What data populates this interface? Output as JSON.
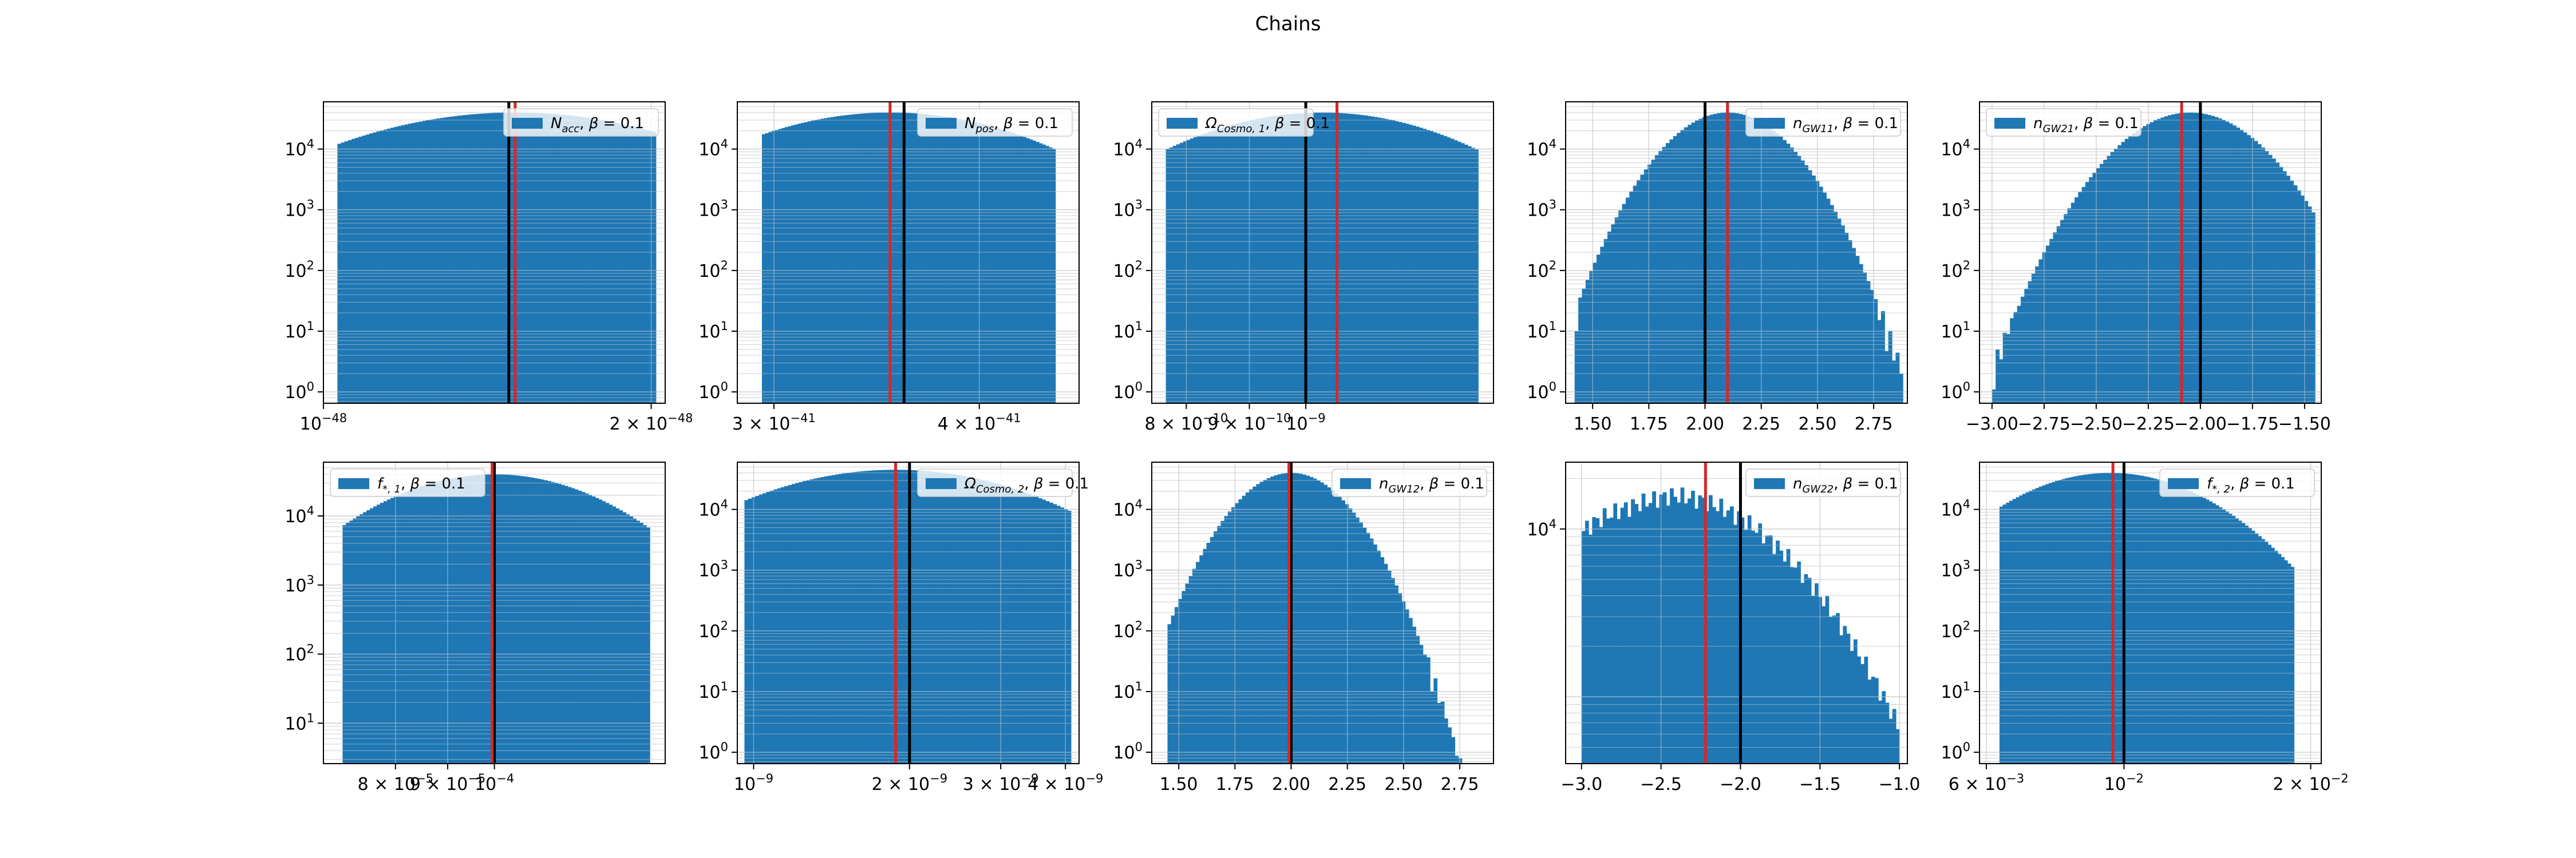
{
  "figure": {
    "title": "Chains"
  },
  "colors": {
    "bar": "#1f77b4",
    "true_line": "#000000",
    "est_line": "#d62728",
    "grid": "#d3d3d3",
    "axis": "#000000"
  },
  "chart_data": [
    {
      "type": "bar",
      "title": "",
      "xlabel": "",
      "ylabel": "",
      "legend": {
        "label": "N_acc, β = 0.1",
        "sym": "N",
        "sub": "acc",
        "beta": "0.1",
        "placement": "top-right"
      },
      "x_axis": {
        "scale": "log",
        "range": [
          1e-48,
          2.06e-48
        ],
        "ticks": [
          {
            "value": 1e-48,
            "label": "10⁻⁴⁸"
          },
          {
            "value": 2e-48,
            "label": "2 × 10⁻⁴⁸"
          }
        ]
      },
      "y_axis": {
        "scale": "log",
        "range": [
          0.65,
          60000
        ],
        "grid": true,
        "ticks": [
          {
            "value": 1,
            "label": "10⁰"
          },
          {
            "value": 10,
            "label": "10¹"
          },
          {
            "value": 100,
            "label": "10²"
          },
          {
            "value": 1000,
            "label": "10³"
          },
          {
            "value": 10000,
            "label": "10⁴"
          }
        ]
      },
      "histogram": {
        "min": 1.03e-48,
        "max": 2.02e-48,
        "peak_center": 1.5e-48,
        "peak": 40000,
        "log_std": 0.105,
        "bins": 90
      },
      "lines": [
        {
          "label": "true",
          "value": 1.48e-48,
          "color": "#000000"
        },
        {
          "label": "estimate",
          "value": 1.5e-48,
          "color": "#d62728"
        }
      ],
      "grid": true
    },
    {
      "type": "bar",
      "title": "",
      "xlabel": "",
      "ylabel": "",
      "legend": {
        "label": "N_pos, β = 0.1",
        "sym": "N",
        "sub": "pos",
        "beta": "0.1",
        "placement": "top-right"
      },
      "x_axis": {
        "scale": "log",
        "range": [
          2.85e-41,
          4.6e-41
        ],
        "ticks": [
          {
            "value": 3e-41,
            "label": "3 × 10⁻⁴¹"
          },
          {
            "value": 4e-41,
            "label": "4 × 10⁻⁴¹"
          }
        ]
      },
      "y_axis": {
        "scale": "log",
        "range": [
          0.65,
          60000
        ],
        "grid": true,
        "ticks": [
          {
            "value": 1,
            "label": "10⁰"
          },
          {
            "value": 10,
            "label": "10¹"
          },
          {
            "value": 100,
            "label": "10²"
          },
          {
            "value": 1000,
            "label": "10³"
          },
          {
            "value": 10000,
            "label": "10⁴"
          }
        ]
      },
      "histogram": {
        "min": 2.95e-41,
        "max": 4.45e-41,
        "peak_center": 3.53e-41,
        "peak": 40000,
        "log_std": 0.06,
        "bins": 90
      },
      "lines": [
        {
          "label": "true",
          "value": 3.6e-41,
          "color": "#000000"
        },
        {
          "label": "estimate",
          "value": 3.53e-41,
          "color": "#d62728"
        }
      ],
      "grid": true
    },
    {
      "type": "bar",
      "title": "",
      "xlabel": "",
      "ylabel": "",
      "legend": {
        "label": "Ω_Cosmo,1, β = 0.1",
        "sym": "Ω",
        "sub": "Cosmo, 1",
        "beta": "0.1",
        "placement": "top-left"
      },
      "x_axis": {
        "scale": "log",
        "range": [
          7.5e-10,
          1.42e-09
        ],
        "ticks": [
          {
            "value": 8e-10,
            "label": "8 × 10⁻¹⁰"
          },
          {
            "value": 9e-10,
            "label": "9 × 10⁻¹⁰"
          },
          {
            "value": 1e-09,
            "label": "10⁻⁹"
          }
        ]
      },
      "y_axis": {
        "scale": "log",
        "range": [
          0.65,
          60000
        ],
        "grid": true,
        "ticks": [
          {
            "value": 1,
            "label": "10⁰"
          },
          {
            "value": 10,
            "label": "10¹"
          },
          {
            "value": 100,
            "label": "10²"
          },
          {
            "value": 1000,
            "label": "10³"
          },
          {
            "value": 10000,
            "label": "10⁴"
          }
        ]
      },
      "histogram": {
        "min": 7.7e-10,
        "max": 1.38e-09,
        "peak_center": 1.03e-09,
        "peak": 40000,
        "log_std": 0.075,
        "bins": 90
      },
      "lines": [
        {
          "label": "true",
          "value": 1e-09,
          "color": "#000000"
        },
        {
          "label": "estimate",
          "value": 1.06e-09,
          "color": "#d62728"
        }
      ],
      "grid": true
    },
    {
      "type": "bar",
      "title": "",
      "xlabel": "",
      "ylabel": "",
      "legend": {
        "label": "n_GW11, β = 0.1",
        "sym": "n",
        "sub": "GW11",
        "beta": "0.1",
        "placement": "top-right"
      },
      "x_axis": {
        "scale": "linear",
        "range": [
          1.38,
          2.9
        ],
        "ticks": [
          {
            "value": 1.5,
            "label": "1.50"
          },
          {
            "value": 1.75,
            "label": "1.75"
          },
          {
            "value": 2.0,
            "label": "2.00"
          },
          {
            "value": 2.25,
            "label": "2.25"
          },
          {
            "value": 2.5,
            "label": "2.50"
          },
          {
            "value": 2.75,
            "label": "2.75"
          }
        ]
      },
      "y_axis": {
        "scale": "log",
        "range": [
          0.65,
          60000
        ],
        "grid": true,
        "ticks": [
          {
            "value": 1,
            "label": "10⁰"
          },
          {
            "value": 10,
            "label": "10¹"
          },
          {
            "value": 100,
            "label": "10²"
          },
          {
            "value": 1000,
            "label": "10³"
          },
          {
            "value": 10000,
            "label": "10⁴"
          }
        ]
      },
      "histogram": {
        "min": 1.42,
        "max": 2.88,
        "peak_center": 2.1,
        "peak": 40000,
        "log_std": 0.175,
        "bins": 90
      },
      "lines": [
        {
          "label": "true",
          "value": 2.0,
          "color": "#000000"
        },
        {
          "label": "estimate",
          "value": 2.1,
          "color": "#d62728"
        }
      ],
      "grid": true
    },
    {
      "type": "bar",
      "title": "",
      "xlabel": "",
      "ylabel": "",
      "legend": {
        "label": "n_GW21, β = 0.1",
        "sym": "n",
        "sub": "GW21",
        "beta": "0.1",
        "placement": "top-left"
      },
      "x_axis": {
        "scale": "linear",
        "range": [
          -3.06,
          -1.42
        ],
        "ticks": [
          {
            "value": -3.0,
            "label": "−3.00"
          },
          {
            "value": -2.75,
            "label": "−2.75"
          },
          {
            "value": -2.5,
            "label": "−2.50"
          },
          {
            "value": -2.25,
            "label": "−2.25"
          },
          {
            "value": -2.0,
            "label": "−2.00"
          },
          {
            "value": -1.75,
            "label": "−1.75"
          },
          {
            "value": -1.5,
            "label": "−1.50"
          }
        ]
      },
      "y_axis": {
        "scale": "log",
        "range": [
          0.65,
          60000
        ],
        "grid": true,
        "ticks": [
          {
            "value": 1,
            "label": "10⁰"
          },
          {
            "value": 10,
            "label": "10¹"
          },
          {
            "value": 100,
            "label": "10²"
          },
          {
            "value": 1000,
            "label": "10³"
          },
          {
            "value": 10000,
            "label": "10⁴"
          }
        ]
      },
      "histogram": {
        "min": -3.0,
        "max": -1.45,
        "peak_center": -2.05,
        "peak": 40000,
        "log_std": 0.215,
        "bins": 90
      },
      "lines": [
        {
          "label": "true",
          "value": -2.0,
          "color": "#000000"
        },
        {
          "label": "estimate",
          "value": -2.09,
          "color": "#d62728"
        }
      ],
      "grid": true
    },
    {
      "type": "bar",
      "title": "",
      "xlabel": "",
      "ylabel": "",
      "legend": {
        "label": "f*,1, β = 0.1",
        "sym": "f",
        "sub": "*, 1",
        "beta": "0.1",
        "placement": "top-left"
      },
      "x_axis": {
        "scale": "log",
        "range": [
          6.8e-05,
          0.000147
        ],
        "ticks": [
          {
            "value": 8e-05,
            "label": "8 × 10⁻⁵"
          },
          {
            "value": 9e-05,
            "label": "9 × 10⁻⁵"
          },
          {
            "value": 0.0001,
            "label": "10⁻⁴"
          }
        ]
      },
      "y_axis": {
        "scale": "log",
        "range": [
          2.6,
          60000
        ],
        "grid": true,
        "ticks": [
          {
            "value": 10,
            "label": "10¹"
          },
          {
            "value": 100,
            "label": "10²"
          },
          {
            "value": 1000,
            "label": "10³"
          },
          {
            "value": 10000,
            "label": "10⁴"
          }
        ]
      },
      "histogram": {
        "min": 7.1e-05,
        "max": 0.000142,
        "peak_center": 0.0001,
        "peak": 40000,
        "log_std": 0.08,
        "bins": 90
      },
      "lines": [
        {
          "label": "true",
          "value": 0.0001,
          "color": "#000000"
        },
        {
          "label": "estimate",
          "value": 9.95e-05,
          "color": "#d62728"
        }
      ],
      "grid": true
    },
    {
      "type": "bar",
      "title": "",
      "xlabel": "",
      "ylabel": "",
      "legend": {
        "label": "Ω_Cosmo,2, β = 0.1",
        "sym": "Ω",
        "sub": "Cosmo, 2",
        "beta": "0.1",
        "placement": "top-right"
      },
      "x_axis": {
        "scale": "log",
        "range": [
          9.3e-10,
          4.25e-09
        ],
        "ticks": [
          {
            "value": 1e-09,
            "label": "10⁻⁹"
          },
          {
            "value": 2e-09,
            "label": "2 × 10⁻⁹"
          },
          {
            "value": 3e-09,
            "label": "3 × 10⁻⁹"
          },
          {
            "value": 4e-09,
            "label": "4 × 10⁻⁹"
          }
        ]
      },
      "y_axis": {
        "scale": "log",
        "range": [
          0.65,
          60000
        ],
        "grid": true,
        "ticks": [
          {
            "value": 1,
            "label": "10⁰"
          },
          {
            "value": 10,
            "label": "10¹"
          },
          {
            "value": 100,
            "label": "10²"
          },
          {
            "value": 1000,
            "label": "10³"
          },
          {
            "value": 10000,
            "label": "10⁴"
          }
        ]
      },
      "histogram": {
        "min": 9.6e-10,
        "max": 4.1e-09,
        "peak_center": 1.88e-09,
        "peak": 45000,
        "log_std": 0.19,
        "bins": 90
      },
      "lines": [
        {
          "label": "true",
          "value": 2e-09,
          "color": "#000000"
        },
        {
          "label": "estimate",
          "value": 1.88e-09,
          "color": "#d62728"
        }
      ],
      "grid": true
    },
    {
      "type": "bar",
      "title": "",
      "xlabel": "",
      "ylabel": "",
      "legend": {
        "label": "n_GW12, β = 0.1",
        "sym": "n",
        "sub": "GW12",
        "beta": "0.1",
        "placement": "top-right"
      },
      "x_axis": {
        "scale": "linear",
        "range": [
          1.38,
          2.9
        ],
        "ticks": [
          {
            "value": 1.5,
            "label": "1.50"
          },
          {
            "value": 1.75,
            "label": "1.75"
          },
          {
            "value": 2.0,
            "label": "2.00"
          },
          {
            "value": 2.25,
            "label": "2.25"
          },
          {
            "value": 2.5,
            "label": "2.50"
          },
          {
            "value": 2.75,
            "label": "2.75"
          }
        ]
      },
      "y_axis": {
        "scale": "log",
        "range": [
          0.65,
          60000
        ],
        "grid": true,
        "ticks": [
          {
            "value": 1,
            "label": "10⁰"
          },
          {
            "value": 10,
            "label": "10¹"
          },
          {
            "value": 100,
            "label": "10²"
          },
          {
            "value": 1000,
            "label": "10³"
          },
          {
            "value": 10000,
            "label": "10⁴"
          }
        ]
      },
      "histogram": {
        "min": 1.45,
        "max": 2.87,
        "peak_center": 2.0,
        "peak": 40000,
        "log_std": 0.16,
        "bins": 90
      },
      "lines": [
        {
          "label": "true",
          "value": 2.0,
          "color": "#000000"
        },
        {
          "label": "estimate",
          "value": 1.99,
          "color": "#d62728"
        }
      ],
      "grid": true
    },
    {
      "type": "bar",
      "title": "",
      "xlabel": "",
      "ylabel": "",
      "legend": {
        "label": "n_GW22, β = 0.1",
        "sym": "n",
        "sub": "GW22",
        "beta": "0.1",
        "placement": "top-right"
      },
      "x_axis": {
        "scale": "linear",
        "range": [
          -3.1,
          -0.95
        ],
        "ticks": [
          {
            "value": -3.0,
            "label": "−3.0"
          },
          {
            "value": -2.5,
            "label": "−2.5"
          },
          {
            "value": -2.0,
            "label": "−2.0"
          },
          {
            "value": -1.5,
            "label": "−1.5"
          },
          {
            "value": -1.0,
            "label": "−1.0"
          }
        ]
      },
      "y_axis": {
        "scale": "log",
        "range": [
          400,
          25000
        ],
        "grid": true,
        "ticks": [
          {
            "value": 10000,
            "label": "10⁴"
          }
        ]
      },
      "histogram_shape": "truncated",
      "histogram": {
        "min": -3.0,
        "max": -1.0,
        "peak_center": -2.45,
        "peak": 17000,
        "edge_value": 10000,
        "tail_value": 700,
        "bins": 90
      },
      "lines": [
        {
          "label": "true",
          "value": -2.0,
          "color": "#000000"
        },
        {
          "label": "estimate",
          "value": -2.22,
          "color": "#d62728"
        }
      ],
      "grid": true
    },
    {
      "type": "bar",
      "title": "",
      "xlabel": "",
      "ylabel": "",
      "legend": {
        "label": "f*,2, β = 0.1",
        "sym": "f",
        "sub": "*, 2",
        "beta": "0.1",
        "placement": "top-right"
      },
      "x_axis": {
        "scale": "log",
        "range": [
          0.00585,
          0.0208
        ],
        "ticks": [
          {
            "value": 0.006,
            "label": "6 × 10⁻³"
          },
          {
            "value": 0.01,
            "label": "10⁻²"
          },
          {
            "value": 0.02,
            "label": "2 × 10⁻²"
          }
        ]
      },
      "y_axis": {
        "scale": "log",
        "range": [
          0.65,
          60000
        ],
        "grid": true,
        "ticks": [
          {
            "value": 1,
            "label": "10⁰"
          },
          {
            "value": 10,
            "label": "10¹"
          },
          {
            "value": 100,
            "label": "10²"
          },
          {
            "value": 1000,
            "label": "10³"
          },
          {
            "value": 10000,
            "label": "10⁴"
          }
        ]
      },
      "histogram": {
        "min": 0.0063,
        "max": 0.0188,
        "peak_center": 0.0095,
        "peak": 40000,
        "log_std": 0.11,
        "bins": 90
      },
      "lines": [
        {
          "label": "true",
          "value": 0.01,
          "color": "#000000"
        },
        {
          "label": "estimate",
          "value": 0.0096,
          "color": "#d62728"
        }
      ],
      "grid": true
    }
  ]
}
